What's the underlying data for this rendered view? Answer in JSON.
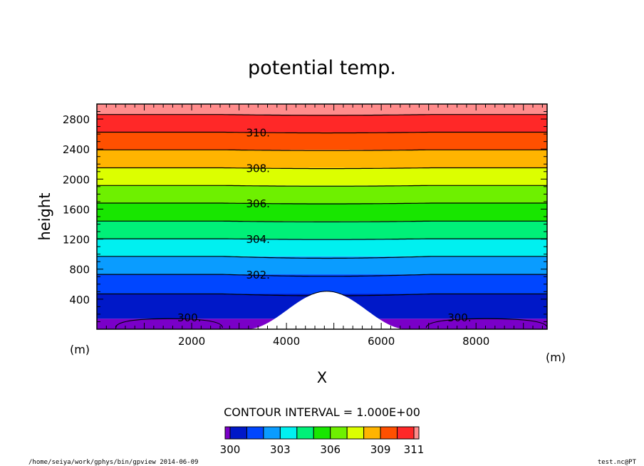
{
  "chart_data": {
    "type": "contour",
    "title": "potential temp.",
    "xlabel": "X",
    "ylabel": "height",
    "x_units": "(m)",
    "y_units": "(m)",
    "xlim": [
      0,
      9500
    ],
    "ylim": [
      0,
      3000
    ],
    "x_ticks": [
      2000,
      4000,
      6000,
      8000
    ],
    "x_tick_labels": [
      "2000",
      "4000",
      "6000",
      "8000"
    ],
    "y_ticks": [
      400,
      800,
      1200,
      1600,
      2000,
      2400,
      2800
    ],
    "y_tick_labels": [
      "400",
      "800",
      "1200",
      "1600",
      "2000",
      "2400",
      "2800"
    ],
    "levels": [
      300,
      301,
      302,
      303,
      304,
      305,
      306,
      307,
      308,
      309,
      310,
      311
    ],
    "fill_colors": [
      "#7a00c8",
      "#0018c8",
      "#0046ff",
      "#0a9cff",
      "#00f0f0",
      "#00f078",
      "#18e600",
      "#6ef000",
      "#dcff00",
      "#ffb400",
      "#ff5000",
      "#ff2828",
      "#ff8c8c"
    ],
    "labeled_contours": [
      {
        "value": 310,
        "label": "310.",
        "x": 3400,
        "y": 2625
      },
      {
        "value": 308,
        "label": "308.",
        "x": 3400,
        "y": 2150
      },
      {
        "value": 306,
        "label": "306.",
        "x": 3400,
        "y": 1680
      },
      {
        "value": 304,
        "label": "304.",
        "x": 3400,
        "y": 1205
      },
      {
        "value": 302,
        "label": "302.",
        "x": 3400,
        "y": 730
      },
      {
        "value": 300,
        "label": "300.",
        "x": 1950,
        "y": 160
      },
      {
        "value": 300,
        "label": "300.",
        "x": 7650,
        "y": 160
      }
    ],
    "contour_heights": [
      {
        "value": 300,
        "height": 140
      },
      {
        "value": 301,
        "height": 470
      },
      {
        "value": 302,
        "height": 730
      },
      {
        "value": 303,
        "height": 970
      },
      {
        "value": 304,
        "height": 1205
      },
      {
        "value": 305,
        "height": 1440
      },
      {
        "value": 306,
        "height": 1680
      },
      {
        "value": 307,
        "height": 1915
      },
      {
        "value": 308,
        "height": 2150
      },
      {
        "value": 309,
        "height": 2390
      },
      {
        "value": 310,
        "height": 2625
      },
      {
        "value": 311,
        "height": 2860
      }
    ],
    "mountain": {
      "center_x": 4850,
      "peak_height": 500,
      "half_width": 1700
    },
    "contour_interval_text": "CONTOUR INTERVAL = 1.000E+00",
    "colorbar_labels": [
      "300",
      "303",
      "306",
      "309",
      "311"
    ]
  },
  "footer": {
    "left": "/home/seiya/work/gphys/bin/gpview  2014-06-09",
    "right": "test.nc@PT"
  }
}
